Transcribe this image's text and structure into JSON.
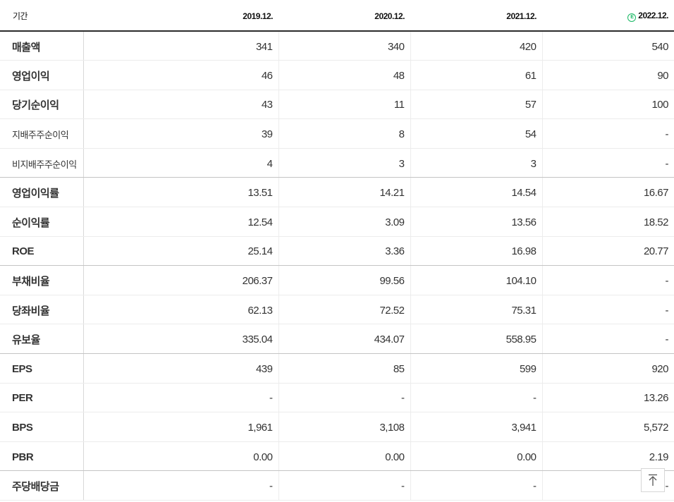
{
  "header": {
    "label": "기간",
    "estimate_badge": "E",
    "periods": [
      "2019.12.",
      "2020.12.",
      "2021.12.",
      "2022.12."
    ]
  },
  "rows": [
    {
      "label": "매출액",
      "values": [
        "341",
        "340",
        "420",
        "540"
      ]
    },
    {
      "label": "영업이익",
      "values": [
        "46",
        "48",
        "61",
        "90"
      ]
    },
    {
      "label": "당기순이익",
      "values": [
        "43",
        "11",
        "57",
        "100"
      ]
    },
    {
      "label": "지배주주순이익",
      "values": [
        "39",
        "8",
        "54",
        "-"
      ]
    },
    {
      "label": "비지배주주순이익",
      "values": [
        "4",
        "3",
        "3",
        "-"
      ]
    },
    {
      "label": "영업이익률",
      "values": [
        "13.51",
        "14.21",
        "14.54",
        "16.67"
      ]
    },
    {
      "label": "순이익률",
      "values": [
        "12.54",
        "3.09",
        "13.56",
        "18.52"
      ]
    },
    {
      "label": "ROE",
      "values": [
        "25.14",
        "3.36",
        "16.98",
        "20.77"
      ]
    },
    {
      "label": "부채비율",
      "values": [
        "206.37",
        "99.56",
        "104.10",
        "-"
      ]
    },
    {
      "label": "당좌비율",
      "values": [
        "62.13",
        "72.52",
        "75.31",
        "-"
      ]
    },
    {
      "label": "유보율",
      "values": [
        "335.04",
        "434.07",
        "558.95",
        "-"
      ]
    },
    {
      "label": "EPS",
      "values": [
        "439",
        "85",
        "599",
        "920"
      ]
    },
    {
      "label": "PER",
      "values": [
        "-",
        "-",
        "-",
        "13.26"
      ]
    },
    {
      "label": "BPS",
      "values": [
        "1,961",
        "3,108",
        "3,941",
        "5,572"
      ]
    },
    {
      "label": "PBR",
      "values": [
        "0.00",
        "0.00",
        "0.00",
        "2.19"
      ]
    },
    {
      "label": "주당배당금",
      "values": [
        "-",
        "-",
        "-",
        "-"
      ]
    }
  ],
  "icons": {
    "scroll_top": "arrow-up-to-top-icon",
    "estimate": "estimate-badge-icon"
  },
  "colors": {
    "accent": "#19b864",
    "header_rule": "#2b2b2b",
    "grid": "#ececec"
  }
}
